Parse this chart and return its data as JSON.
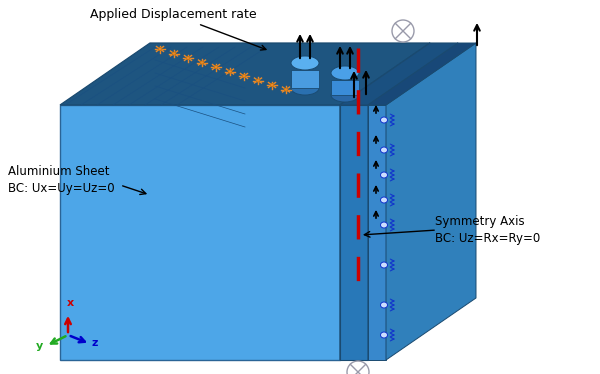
{
  "background_color": "#ffffff",
  "blue_main": "#4da6e8",
  "blue_dark": "#2a6496",
  "blue_darker": "#1e5580",
  "blue_side": "#3b8fd4",
  "blue_conn": "#2878b8",
  "blue_plate": "#4090cc",
  "blue_deep": "#1a4a70",
  "red_dashed": "#cc0000",
  "orange_color": "#e8892a",
  "gray_bc": "#aaaaaa",
  "blue_symbol": "#1133cc",
  "labels": {
    "applied_displacement": "Applied Displacement rate",
    "aluminium_sheet": "Aluminium Sheet\nBC: Ux=Uy=Uz=0",
    "symmetry_axis": "Symmetry Axis\nBC: Uz=Rx=Ry=0"
  },
  "coord_axes": {
    "x_color": "#cc0000",
    "y_color": "#22aa22",
    "z_color": "#0000cc",
    "x_label": "x",
    "y_label": "y",
    "z_label": "z"
  },
  "figsize": [
    6.0,
    3.74
  ],
  "dpi": 100
}
